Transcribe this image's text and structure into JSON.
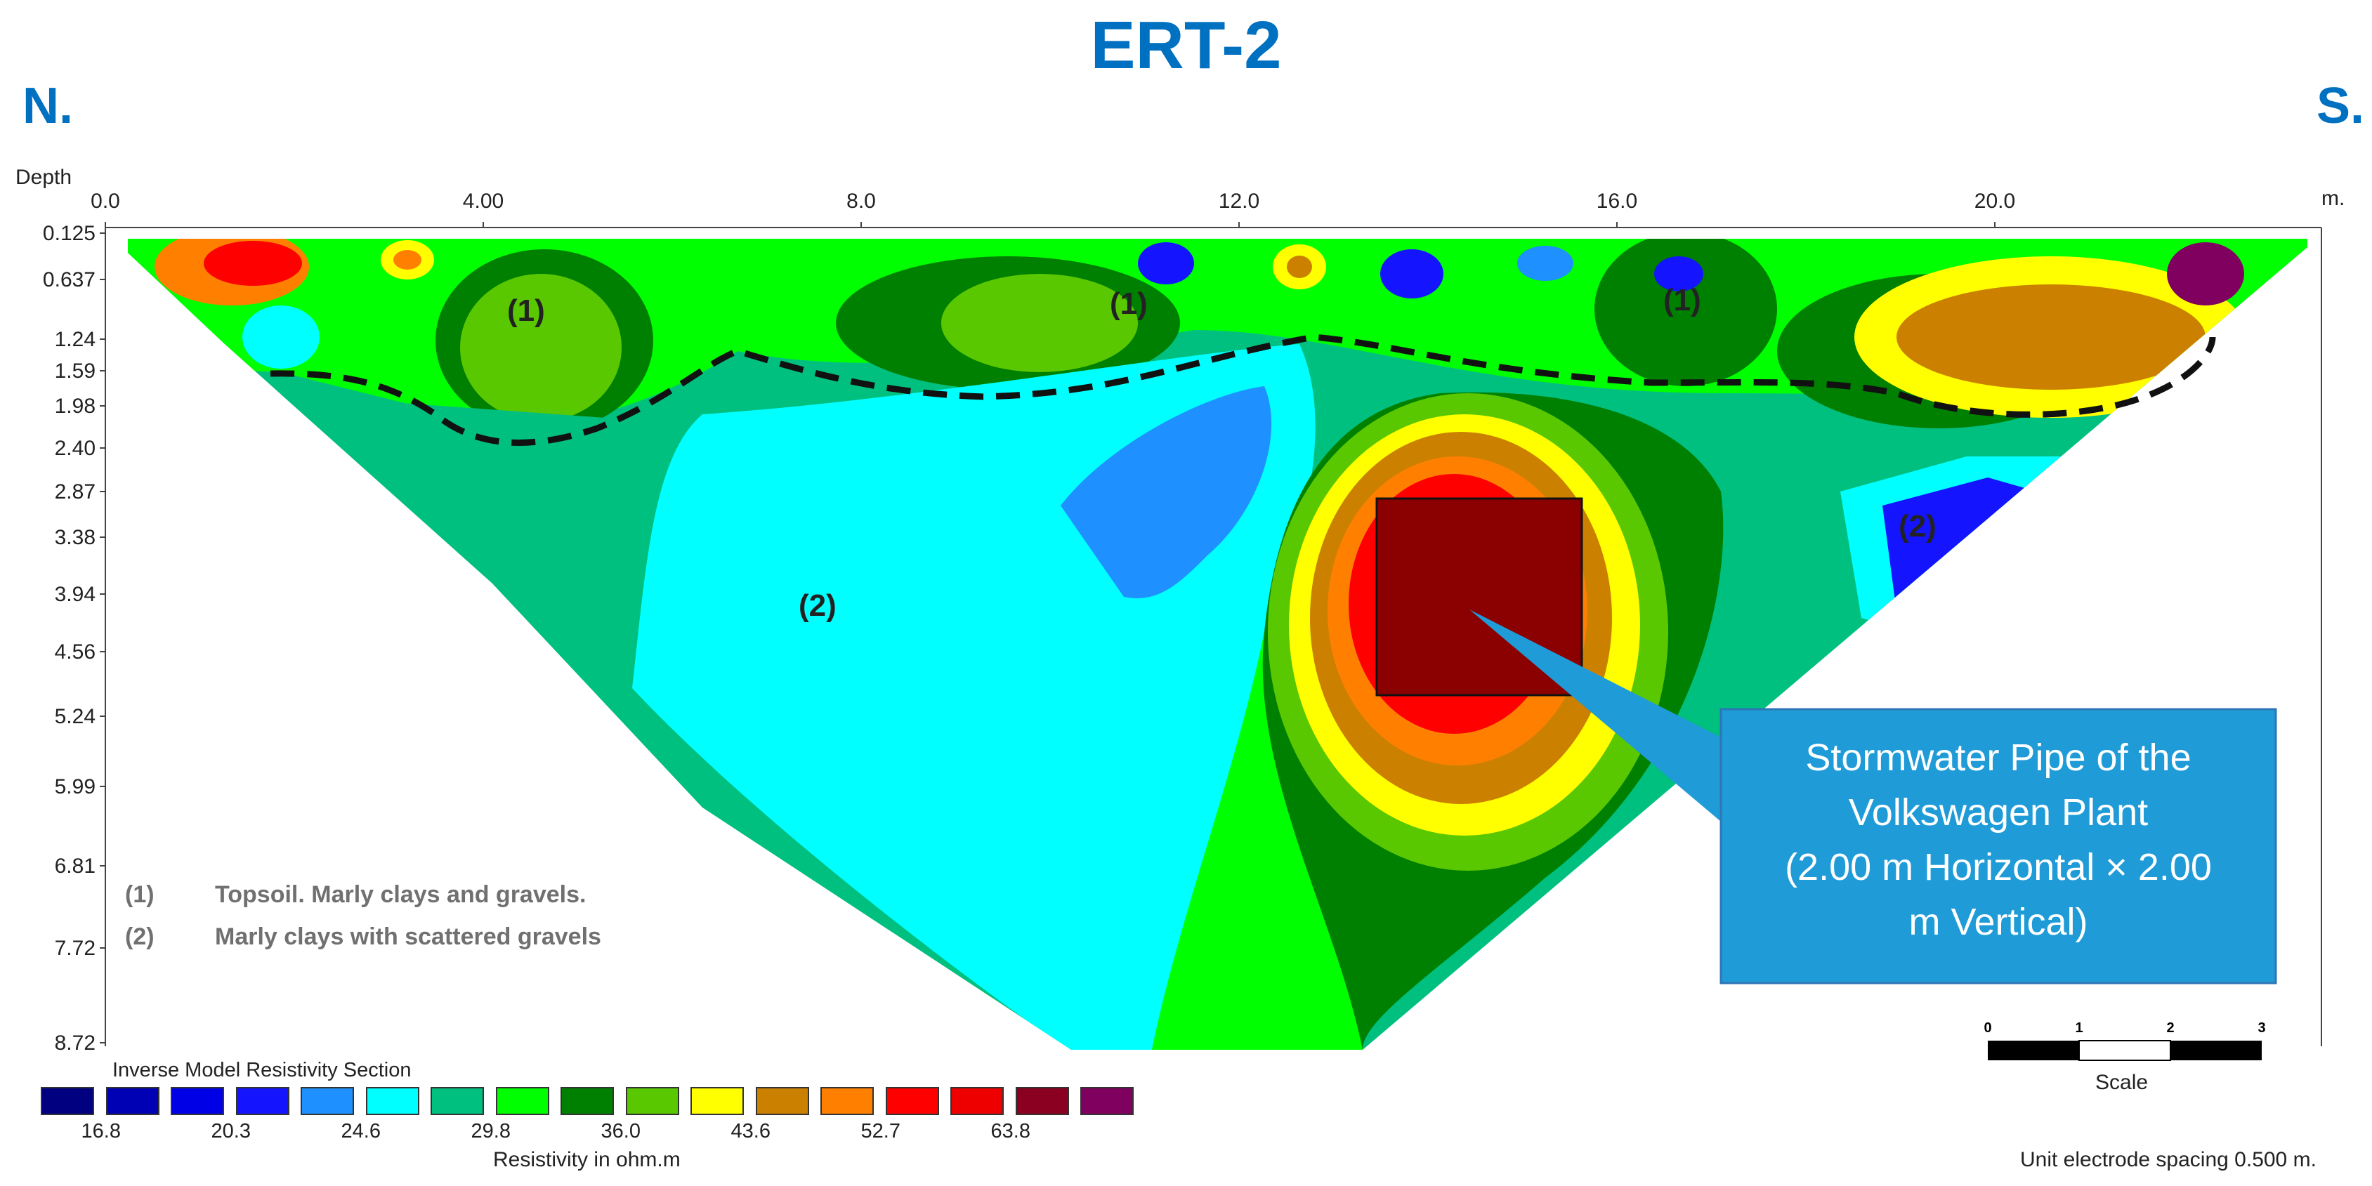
{
  "title": "ERT-2",
  "direction_left": "N.",
  "direction_right": "S.",
  "depth_axis_title": "Depth",
  "distance_unit": "m.",
  "x_ticks": [
    "0.0",
    "4.00",
    "8.0",
    "12.0",
    "16.0",
    "20.0"
  ],
  "y_ticks": [
    "0.125",
    "0.637",
    "1.24",
    "1.59",
    "1.98",
    "2.40",
    "2.87",
    "3.38",
    "3.94",
    "4.56",
    "5.24",
    "5.99",
    "6.81",
    "7.72",
    "8.72"
  ],
  "unit_labels": [
    "(1)",
    "(1)",
    "(1)",
    "(2)",
    "(2)"
  ],
  "legend": [
    {
      "num": "(1)",
      "text": "Topsoil. Marly clays and gravels."
    },
    {
      "num": "(2)",
      "text": "Marly clays with scattered gravels"
    }
  ],
  "callout": {
    "lines": [
      "Stormwater Pipe of the",
      "Volkswagen Plant",
      "(2.00 m Horizontal × 2.00",
      "m Vertical)"
    ],
    "color": "#1F9BD7"
  },
  "scale_bar": {
    "ticks": [
      "0",
      "1",
      "2",
      "3"
    ],
    "label": "Scale"
  },
  "colorbar": {
    "title": "Inverse Model Resistivity Section",
    "colors": [
      "#000080",
      "#0000B4",
      "#0000E6",
      "#1414FF",
      "#1E90FF",
      "#00FFFF",
      "#00C080",
      "#00FF00",
      "#008000",
      "#5AC800",
      "#FFFF00",
      "#CC8000",
      "#FF8000",
      "#FF0000",
      "#EE0000",
      "#8B0020",
      "#800060"
    ],
    "values": [
      "16.8",
      "20.3",
      "24.6",
      "29.8",
      "36.0",
      "43.6",
      "52.7",
      "63.8"
    ],
    "unit": "Resistivity in ohm.m"
  },
  "electrode_spacing": "Unit electrode spacing 0.500 m."
}
